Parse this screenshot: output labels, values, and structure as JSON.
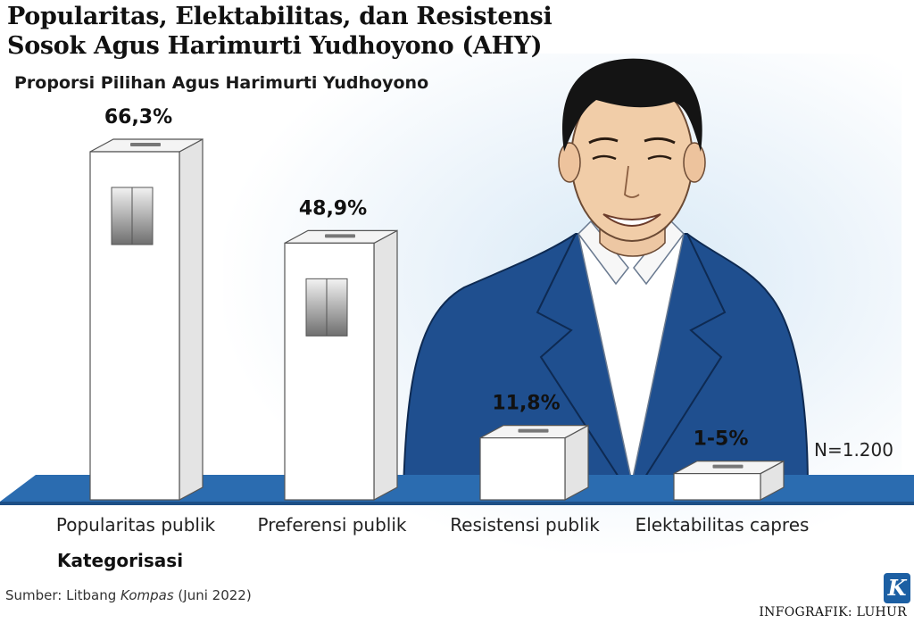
{
  "header": {
    "title_line1": "Popularitas, Elektabilitas, dan Resistensi",
    "title_line2": "Sosok Agus Harimurti Yudhoyono (AHY)",
    "subtitle": "Proporsi Pilihan Agus Harimurti Yudhoyono"
  },
  "chart_data": {
    "type": "bar",
    "title": "Proporsi Pilihan Agus Harimurti Yudhoyono",
    "categories": [
      "Popularitas publik",
      "Preferensi publik",
      "Resistensi publik",
      "Elektabilitas capres"
    ],
    "values": [
      66.3,
      48.9,
      11.8,
      5
    ],
    "data_labels": [
      "66,3%",
      "48,9%",
      "11,8%",
      "1-5%"
    ],
    "xlabel": "Kategorisasi",
    "ylabel": "",
    "note": "N=1.200",
    "colors": {
      "box": "#ffffff",
      "box_side": "#e4e4e4",
      "box_stroke": "#555555",
      "floor": "#2b6cb0",
      "suit": "#1f4f8f"
    }
  },
  "footer": {
    "source_prefix": "Sumber: Litbang ",
    "source_italic": "Kompas",
    "source_suffix": " (Juni 2022)",
    "credit": "INFOGRAFIK: LUHUR",
    "logo_letter": "K"
  }
}
